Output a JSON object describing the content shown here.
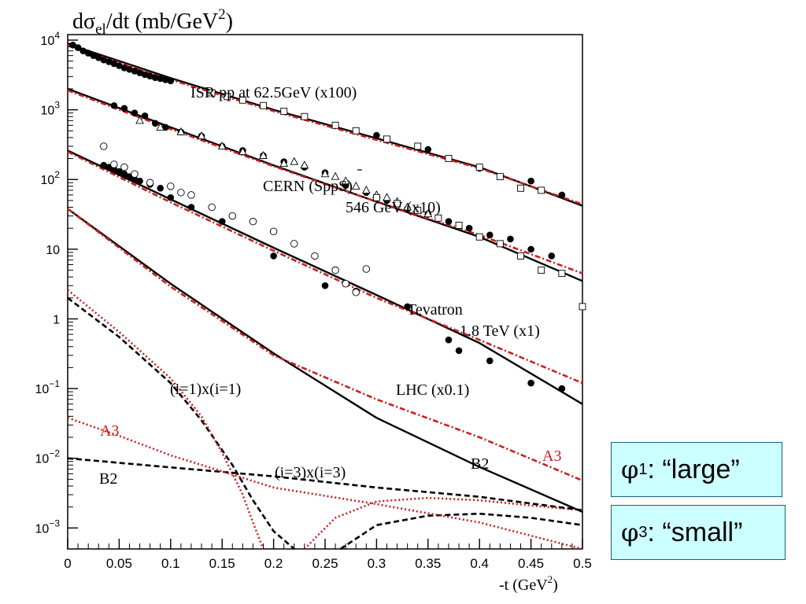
{
  "chart_data": {
    "type": "scatter",
    "title": "dσel/dt  (mb/GeV2)",
    "title_parts": {
      "a": "d",
      "b": "σ",
      "c": "el",
      "d": "/dt  (mb/GeV",
      "e": "2",
      "f": ")"
    },
    "xlabel": "-t  (GeV2)",
    "xlabel_parts": {
      "a": "-t  (GeV",
      "b": "2",
      "c": ")"
    },
    "ylabel": "",
    "xlim": [
      0,
      0.5
    ],
    "ylim": [
      0.0005,
      12000
    ],
    "yscale": "log",
    "x_ticks": [
      {
        "v": 0,
        "label": "0"
      },
      {
        "v": 0.05,
        "label": "0.05"
      },
      {
        "v": 0.1,
        "label": "0.1"
      },
      {
        "v": 0.15,
        "label": "0.15"
      },
      {
        "v": 0.2,
        "label": "0.2"
      },
      {
        "v": 0.25,
        "label": "0.25"
      },
      {
        "v": 0.3,
        "label": "0.3"
      },
      {
        "v": 0.35,
        "label": "0.35"
      },
      {
        "v": 0.4,
        "label": "0.4"
      },
      {
        "v": 0.45,
        "label": "0.45"
      },
      {
        "v": 0.5,
        "label": "0.5"
      }
    ],
    "y_ticks": [
      {
        "v": 10000,
        "base": "10",
        "exp": "4"
      },
      {
        "v": 1000,
        "base": "10",
        "exp": "3"
      },
      {
        "v": 100,
        "base": "10",
        "exp": "2"
      },
      {
        "v": 10,
        "base": "10",
        "exp": ""
      },
      {
        "v": 1,
        "base": "1",
        "exp": ""
      },
      {
        "v": 0.1,
        "base": "10",
        "exp": "−1"
      },
      {
        "v": 0.01,
        "base": "10",
        "exp": "−2"
      },
      {
        "v": 0.001,
        "base": "10",
        "exp": "−3"
      }
    ],
    "colors": {
      "black": "#000000",
      "red": "#cc1f1f",
      "box_bg": "#ccffff",
      "box_border": "#1f5c7a"
    },
    "curves": [
      {
        "id": "isr-solid",
        "color": "black",
        "style": "solid",
        "points": [
          [
            0,
            8800
          ],
          [
            0.1,
            2850
          ],
          [
            0.2,
            1000
          ],
          [
            0.3,
            390
          ],
          [
            0.4,
            150
          ],
          [
            0.5,
            42
          ]
        ]
      },
      {
        "id": "isr-red",
        "color": "red",
        "style": "dashdot",
        "points": [
          [
            0,
            8500
          ],
          [
            0.1,
            2700
          ],
          [
            0.2,
            960
          ],
          [
            0.3,
            370
          ],
          [
            0.4,
            145
          ],
          [
            0.5,
            44
          ]
        ]
      },
      {
        "id": "sps-solid",
        "color": "black",
        "style": "solid",
        "points": [
          [
            0,
            2000
          ],
          [
            0.1,
            560
          ],
          [
            0.2,
            160
          ],
          [
            0.3,
            48
          ],
          [
            0.4,
            15
          ],
          [
            0.5,
            3.5
          ]
        ]
      },
      {
        "id": "sps-red",
        "color": "red",
        "style": "dashdot",
        "points": [
          [
            0,
            1900
          ],
          [
            0.1,
            530
          ],
          [
            0.2,
            155
          ],
          [
            0.3,
            48
          ],
          [
            0.4,
            16
          ],
          [
            0.5,
            4.5
          ]
        ]
      },
      {
        "id": "tev-solid",
        "color": "black",
        "style": "solid",
        "points": [
          [
            0,
            260
          ],
          [
            0.1,
            52
          ],
          [
            0.2,
            10.5
          ],
          [
            0.3,
            2.2
          ],
          [
            0.4,
            0.45
          ],
          [
            0.5,
            0.06
          ]
        ]
      },
      {
        "id": "tev-red",
        "color": "red",
        "style": "dashdot",
        "points": [
          [
            0,
            250
          ],
          [
            0.1,
            47
          ],
          [
            0.2,
            9.5
          ],
          [
            0.3,
            2.0
          ],
          [
            0.4,
            0.5
          ],
          [
            0.5,
            0.12
          ]
        ]
      },
      {
        "id": "lhc-solid",
        "color": "black",
        "style": "solid",
        "points": [
          [
            0,
            38
          ],
          [
            0.1,
            3.2
          ],
          [
            0.2,
            0.32
          ],
          [
            0.3,
            0.038
          ],
          [
            0.4,
            0.0075
          ],
          [
            0.5,
            0.0017
          ]
        ]
      },
      {
        "id": "lhc-red",
        "color": "red",
        "style": "dashdot",
        "points": [
          [
            0,
            38
          ],
          [
            0.1,
            2.9
          ],
          [
            0.2,
            0.3
          ],
          [
            0.3,
            0.07
          ],
          [
            0.4,
            0.02
          ],
          [
            0.5,
            0.0048
          ]
        ]
      },
      {
        "id": "i1-black",
        "color": "black",
        "style": "dashed",
        "points": [
          [
            0,
            2.0
          ],
          [
            0.05,
            0.55
          ],
          [
            0.1,
            0.12
          ],
          [
            0.13,
            0.035
          ],
          [
            0.16,
            0.008
          ],
          [
            0.18,
            0.0025
          ],
          [
            0.2,
            0.0009
          ],
          [
            0.22,
            0.0005
          ]
        ]
      },
      {
        "id": "i1-black-b",
        "color": "black",
        "style": "dashed",
        "points": [
          [
            0.265,
            0.0005
          ],
          [
            0.3,
            0.0011
          ],
          [
            0.35,
            0.0015
          ],
          [
            0.4,
            0.0016
          ],
          [
            0.45,
            0.0014
          ],
          [
            0.5,
            0.0011
          ]
        ]
      },
      {
        "id": "i1-red",
        "color": "red",
        "style": "dotted",
        "points": [
          [
            0,
            2.6
          ],
          [
            0.05,
            0.65
          ],
          [
            0.1,
            0.14
          ],
          [
            0.13,
            0.04
          ],
          [
            0.15,
            0.012
          ],
          [
            0.17,
            0.003
          ],
          [
            0.18,
            0.0012
          ],
          [
            0.19,
            0.0005
          ]
        ]
      },
      {
        "id": "i1-red-b",
        "color": "red",
        "style": "dotted",
        "points": [
          [
            0.23,
            0.0005
          ],
          [
            0.26,
            0.0014
          ],
          [
            0.3,
            0.0024
          ],
          [
            0.35,
            0.0027
          ],
          [
            0.4,
            0.0025
          ],
          [
            0.45,
            0.0021
          ],
          [
            0.5,
            0.0018
          ]
        ]
      },
      {
        "id": "b2-dashed",
        "color": "black",
        "style": "dashed",
        "points": [
          [
            0,
            0.01
          ],
          [
            0.1,
            0.0074
          ],
          [
            0.2,
            0.0055
          ],
          [
            0.3,
            0.0038
          ],
          [
            0.4,
            0.0028
          ],
          [
            0.5,
            0.0018
          ]
        ]
      },
      {
        "id": "a3-dotted",
        "color": "red",
        "style": "dotted",
        "points": [
          [
            0,
            0.038
          ],
          [
            0.05,
            0.021
          ],
          [
            0.1,
            0.011
          ],
          [
            0.15,
            0.0065
          ],
          [
            0.2,
            0.0038
          ],
          [
            0.3,
            0.0022
          ],
          [
            0.4,
            0.0012
          ],
          [
            0.5,
            0.0005
          ]
        ]
      }
    ],
    "data_series": [
      {
        "id": "isr-filled",
        "marker": "filled-circle",
        "color": "black",
        "points": [
          [
            0.005,
            8500
          ],
          [
            0.01,
            7800
          ],
          [
            0.015,
            7000
          ],
          [
            0.02,
            6500
          ],
          [
            0.025,
            6000
          ],
          [
            0.03,
            5600
          ],
          [
            0.035,
            5200
          ],
          [
            0.04,
            4900
          ],
          [
            0.045,
            4600
          ],
          [
            0.05,
            4300
          ],
          [
            0.055,
            4000
          ],
          [
            0.06,
            3800
          ],
          [
            0.065,
            3600
          ],
          [
            0.07,
            3400
          ],
          [
            0.075,
            3200
          ],
          [
            0.08,
            3050
          ],
          [
            0.085,
            2900
          ],
          [
            0.09,
            2800
          ],
          [
            0.095,
            2700
          ],
          [
            0.1,
            2600
          ],
          [
            0.3,
            430
          ],
          [
            0.35,
            270
          ],
          [
            0.4,
            145
          ],
          [
            0.45,
            95
          ],
          [
            0.48,
            60
          ]
        ]
      },
      {
        "id": "isr-open",
        "marker": "open-square",
        "color": "black",
        "points": [
          [
            0.14,
            1750
          ],
          [
            0.155,
            1550
          ],
          [
            0.17,
            1380
          ],
          [
            0.19,
            1150
          ],
          [
            0.21,
            950
          ],
          [
            0.23,
            800
          ],
          [
            0.26,
            600
          ],
          [
            0.28,
            500
          ],
          [
            0.31,
            380
          ],
          [
            0.34,
            300
          ],
          [
            0.37,
            200
          ],
          [
            0.4,
            150
          ],
          [
            0.42,
            110
          ],
          [
            0.44,
            75
          ],
          [
            0.46,
            70
          ]
        ]
      },
      {
        "id": "sps-filled",
        "marker": "filled-circle",
        "color": "black",
        "points": [
          [
            0.045,
            1150
          ],
          [
            0.055,
            1050
          ],
          [
            0.065,
            900
          ],
          [
            0.075,
            820
          ],
          [
            0.085,
            640
          ],
          [
            0.095,
            560
          ],
          [
            0.11,
            480
          ],
          [
            0.13,
            420
          ],
          [
            0.15,
            300
          ],
          [
            0.17,
            260
          ],
          [
            0.19,
            220
          ],
          [
            0.21,
            180
          ],
          [
            0.23,
            150
          ],
          [
            0.25,
            125
          ],
          [
            0.27,
            82
          ],
          [
            0.29,
            65
          ],
          [
            0.31,
            50
          ],
          [
            0.33,
            38
          ],
          [
            0.35,
            32
          ],
          [
            0.37,
            25
          ],
          [
            0.39,
            20
          ],
          [
            0.41,
            16
          ],
          [
            0.43,
            14
          ],
          [
            0.45,
            10
          ],
          [
            0.47,
            8
          ]
        ]
      },
      {
        "id": "sps-open-tri",
        "marker": "open-triangle",
        "color": "black",
        "points": [
          [
            0.07,
            700
          ],
          [
            0.09,
            560
          ],
          [
            0.11,
            480
          ],
          [
            0.13,
            420
          ],
          [
            0.15,
            300
          ],
          [
            0.17,
            250
          ],
          [
            0.19,
            220
          ],
          [
            0.21,
            170
          ],
          [
            0.22,
            180
          ],
          [
            0.23,
            160
          ],
          [
            0.25,
            120
          ],
          [
            0.26,
            110
          ],
          [
            0.27,
            95
          ],
          [
            0.28,
            80
          ],
          [
            0.29,
            70
          ],
          [
            0.3,
            60
          ],
          [
            0.31,
            55
          ],
          [
            0.32,
            48
          ],
          [
            0.33,
            40
          ],
          [
            0.34,
            36
          ],
          [
            0.35,
            32
          ]
        ]
      },
      {
        "id": "sps-open-sq",
        "marker": "open-square",
        "color": "black",
        "points": [
          [
            0.3,
            55
          ],
          [
            0.32,
            45
          ],
          [
            0.34,
            36
          ],
          [
            0.36,
            28
          ],
          [
            0.38,
            22
          ],
          [
            0.4,
            15
          ],
          [
            0.42,
            12
          ],
          [
            0.44,
            8
          ],
          [
            0.46,
            5
          ],
          [
            0.48,
            4.5
          ],
          [
            0.5,
            1.5
          ]
        ]
      },
      {
        "id": "tev-filled",
        "marker": "filled-circle",
        "color": "black",
        "points": [
          [
            0.035,
            160
          ],
          [
            0.04,
            150
          ],
          [
            0.045,
            140
          ],
          [
            0.05,
            130
          ],
          [
            0.055,
            120
          ],
          [
            0.06,
            110
          ],
          [
            0.065,
            100
          ],
          [
            0.07,
            95
          ],
          [
            0.08,
            85
          ],
          [
            0.09,
            75
          ],
          [
            0.1,
            55
          ],
          [
            0.12,
            40
          ],
          [
            0.15,
            25
          ],
          [
            0.2,
            8
          ],
          [
            0.25,
            3
          ],
          [
            0.28,
            2.5
          ],
          [
            0.33,
            1.5
          ],
          [
            0.37,
            0.5
          ],
          [
            0.38,
            0.35
          ],
          [
            0.41,
            0.25
          ],
          [
            0.45,
            0.12
          ],
          [
            0.48,
            0.1
          ]
        ]
      },
      {
        "id": "tev-open",
        "marker": "open-circle",
        "color": "black",
        "points": [
          [
            0.035,
            300
          ],
          [
            0.045,
            165
          ],
          [
            0.055,
            150
          ],
          [
            0.065,
            120
          ],
          [
            0.08,
            90
          ],
          [
            0.1,
            80
          ],
          [
            0.11,
            65
          ],
          [
            0.12,
            60
          ],
          [
            0.14,
            40
          ],
          [
            0.16,
            30
          ],
          [
            0.18,
            25
          ],
          [
            0.2,
            18
          ],
          [
            0.22,
            12
          ],
          [
            0.24,
            8
          ],
          [
            0.26,
            5
          ],
          [
            0.27,
            3.2
          ],
          [
            0.28,
            2.4
          ],
          [
            0.29,
            5.2
          ]
        ]
      }
    ],
    "annotations": [
      {
        "id": "isr",
        "text": "ISR pp at 62.5GeV   (x100)",
        "color": "black"
      },
      {
        "id": "cern",
        "text": "CERN (SppS)",
        "color": "black"
      },
      {
        "id": "cern-energy",
        "text": "546 GeV  (x10)",
        "color": "black"
      },
      {
        "id": "tevatron",
        "text": "Tevatron",
        "color": "black"
      },
      {
        "id": "tev-energy",
        "text": "1.8 TeV (x1)",
        "color": "black"
      },
      {
        "id": "lhc",
        "text": "LHC (x0.1)",
        "color": "black"
      },
      {
        "id": "i1",
        "text": "(i=1)x(i=1)",
        "color": "black"
      },
      {
        "id": "i3",
        "text": "(i=3)x(i=3)",
        "color": "black"
      },
      {
        "id": "a3-left",
        "text": "A3",
        "color": "red"
      },
      {
        "id": "b2-left",
        "text": "B2",
        "color": "black"
      },
      {
        "id": "b2-right",
        "text": "B2",
        "color": "black"
      },
      {
        "id": "a3-right",
        "text": "A3",
        "color": "red"
      }
    ]
  },
  "boxes": {
    "phi1": {
      "sym": "φ",
      "sub": "1",
      "text": ": “large”"
    },
    "phi3": {
      "sym": "φ",
      "sub": "3",
      "text": ": “small”"
    }
  }
}
